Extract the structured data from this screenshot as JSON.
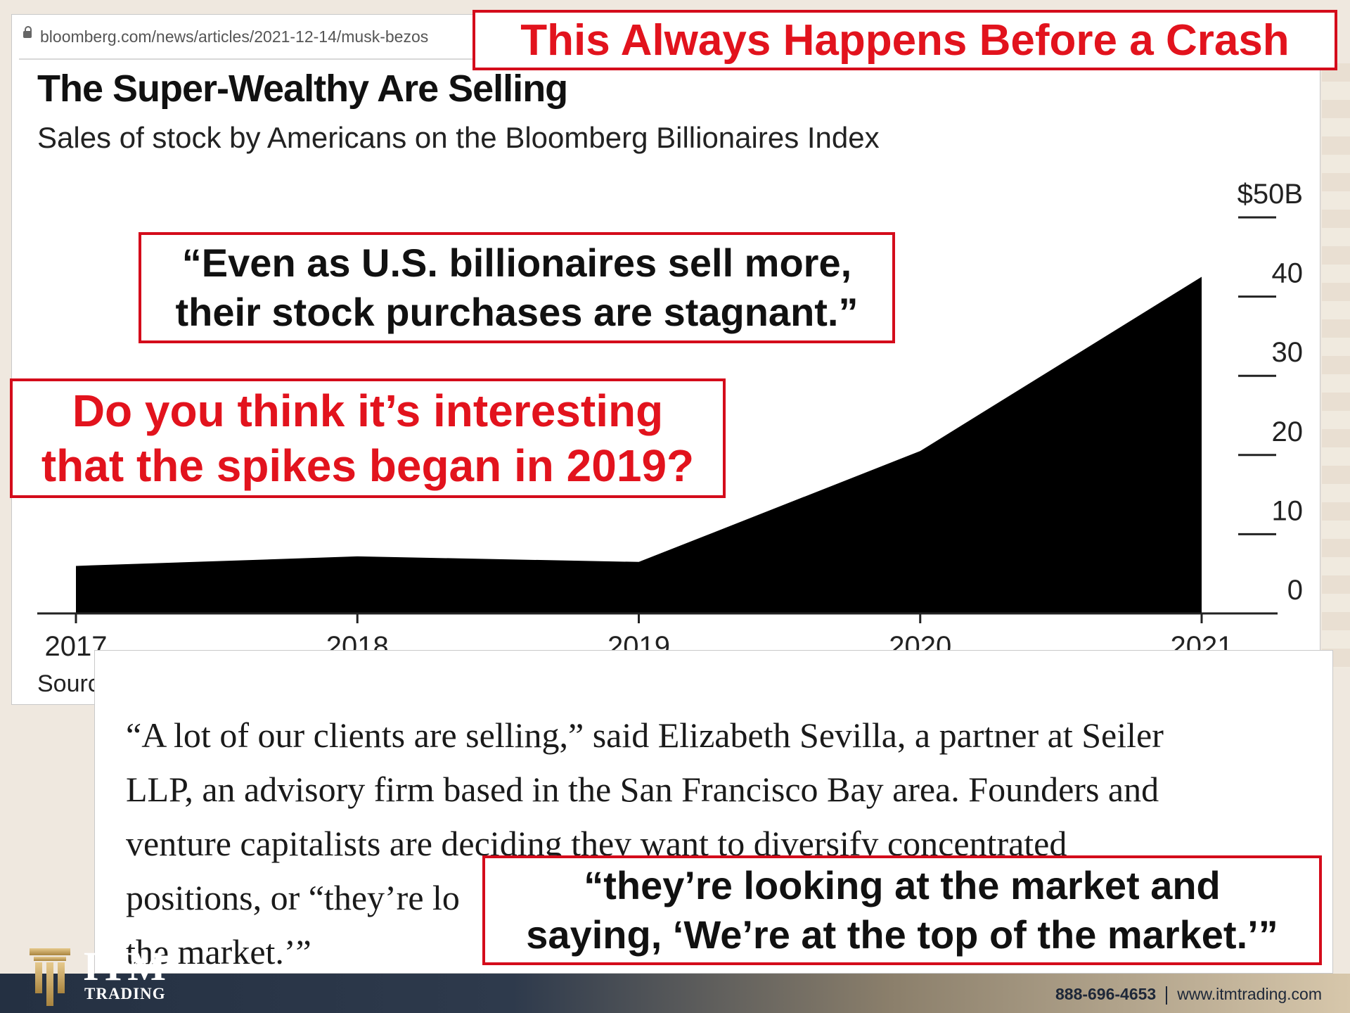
{
  "banner": {
    "headline": "This Always Happens Before a Crash"
  },
  "browser": {
    "url": "bloomberg.com/news/articles/2021-12-14/musk-bezos"
  },
  "chart_data": {
    "type": "area",
    "title": "The Super-Wealthy Are Selling",
    "subtitle": "Sales of stock by Americans on the Bloomberg Billionaires Index",
    "x": [
      "2017",
      "2018",
      "2019",
      "2020",
      "2021"
    ],
    "values": [
      6,
      7.2,
      6.5,
      20.5,
      42.5
    ],
    "ylim": [
      0,
      50
    ],
    "yticks": [
      "$50B",
      "40",
      "30",
      "20",
      "10",
      "0"
    ],
    "yaxis_position": "right",
    "fill_color": "#000000",
    "source": "Source: Bloomberg data"
  },
  "callouts": {
    "quote_line1": "“Even as U.S. billionaires sell more,",
    "quote_line2": "their stock purchases are stagnant.”",
    "question_line1": "Do you think it’s interesting",
    "question_line2": "that the spikes began in 2019?",
    "bottom_line1": "“they’re looking at the market and",
    "bottom_line2": "saying, ‘We’re at the top of the market.’”"
  },
  "article": {
    "lines": [
      "“A lot of our clients are selling,” said Elizabeth Sevilla, a partner at Seiler",
      "LLP, an advisory firm based in the San Francisco Bay area. Founders and",
      "venture capitalists are deciding they want to diversify concentrated",
      "positions, or “they’re lo",
      "the market.’”"
    ]
  },
  "footer": {
    "brand": "ITM",
    "brand_sub": "TRADING",
    "phone": "888-696-4653",
    "website": "www.itmtrading.com"
  },
  "colors": {
    "accent_red": "#e2131d",
    "border_red": "#d40c1b"
  },
  "icons": [
    "lock-icon",
    "itm-pillar-logo-icon"
  ]
}
